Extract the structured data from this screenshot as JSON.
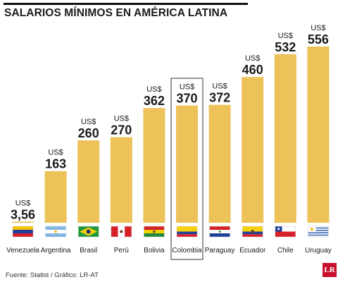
{
  "title": "SALARIOS MÍNIMOS EN AMÉRICA LATINA",
  "footer": "Fuente: Statist / Gráfico: LR-AT",
  "logo_text": "LR",
  "colors": {
    "bar": "#ecc259",
    "text": "#1a1a1a",
    "highlight_border": "#333333"
  },
  "chart_data": {
    "type": "bar",
    "title": "SALARIOS MÍNIMOS EN AMÉRICA LATINA",
    "categories": [
      "Venezuela",
      "Argentina",
      "Brasil",
      "Perú",
      "Bolivia",
      "Colombia",
      "Paraguay",
      "Ecuador",
      "Chile",
      "Uruguay"
    ],
    "values": [
      3.56,
      163,
      260,
      270,
      362,
      370,
      372,
      460,
      532,
      556
    ],
    "value_labels": [
      "3,56",
      "163",
      "260",
      "270",
      "362",
      "370",
      "372",
      "460",
      "532",
      "556"
    ],
    "unit": "US$",
    "highlighted": "Colombia",
    "flag_icons": [
      "venezuela-flag-icon",
      "argentina-flag-icon",
      "brazil-flag-icon",
      "peru-flag-icon",
      "bolivia-flag-icon",
      "colombia-flag-icon",
      "paraguay-flag-icon",
      "ecuador-flag-icon",
      "chile-flag-icon",
      "uruguay-flag-icon"
    ],
    "ylim": [
      0,
      556
    ],
    "grid": false
  }
}
